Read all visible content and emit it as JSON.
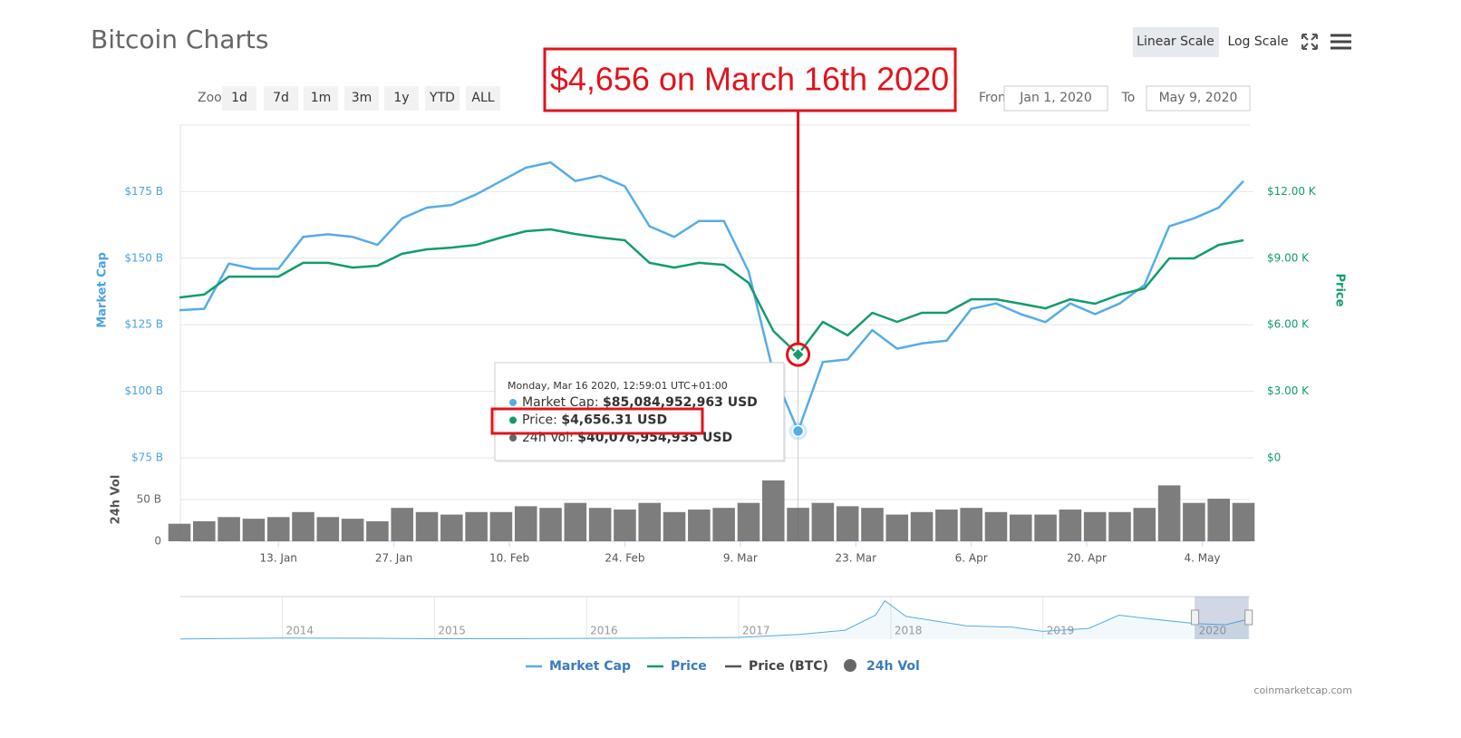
{
  "header": {
    "title": "Bitcoin Charts",
    "scale_buttons": [
      "Linear Scale",
      "Log Scale"
    ],
    "active_scale": 0
  },
  "zoom": {
    "label": "Zoom",
    "buttons": [
      "1d",
      "7d",
      "1m",
      "3m",
      "1y",
      "YTD",
      "ALL"
    ]
  },
  "range": {
    "from_label": "From",
    "from": "Jan 1, 2020",
    "to_label": "To",
    "to": "May 9, 2020"
  },
  "chart_data": {
    "type": "line",
    "x": [
      "2020-01-01",
      "2020-01-04",
      "2020-01-07",
      "2020-01-10",
      "2020-01-13",
      "2020-01-16",
      "2020-01-19",
      "2020-01-22",
      "2020-01-25",
      "2020-01-28",
      "2020-01-31",
      "2020-02-03",
      "2020-02-06",
      "2020-02-09",
      "2020-02-12",
      "2020-02-15",
      "2020-02-18",
      "2020-02-21",
      "2020-02-24",
      "2020-02-27",
      "2020-03-01",
      "2020-03-04",
      "2020-03-07",
      "2020-03-10",
      "2020-03-13",
      "2020-03-16",
      "2020-03-19",
      "2020-03-22",
      "2020-03-25",
      "2020-03-28",
      "2020-03-31",
      "2020-04-03",
      "2020-04-06",
      "2020-04-09",
      "2020-04-12",
      "2020-04-15",
      "2020-04-18",
      "2020-04-21",
      "2020-04-24",
      "2020-04-27",
      "2020-04-30",
      "2020-05-03",
      "2020-05-06",
      "2020-05-09"
    ],
    "xlim": [
      "2020-01-01",
      "2020-05-09"
    ],
    "xticks": [
      {
        "value": "2020-01-13",
        "label": "13. Jan"
      },
      {
        "value": "2020-01-27",
        "label": "27. Jan"
      },
      {
        "value": "2020-02-10",
        "label": "10. Feb"
      },
      {
        "value": "2020-02-24",
        "label": "24. Feb"
      },
      {
        "value": "2020-03-09",
        "label": "9. Mar"
      },
      {
        "value": "2020-03-23",
        "label": "23. Mar"
      },
      {
        "value": "2020-04-06",
        "label": "6. Apr"
      },
      {
        "value": "2020-04-20",
        "label": "20. Apr"
      },
      {
        "value": "2020-05-04",
        "label": "4. May"
      }
    ],
    "ylabel": "Market Cap",
    "ylim": [
      75,
      200
    ],
    "yticks": [
      {
        "value": 75,
        "label": "$75 B"
      },
      {
        "value": 100,
        "label": "$100 B"
      },
      {
        "value": 125,
        "label": "$125 B"
      },
      {
        "value": 150,
        "label": "$150 B"
      },
      {
        "value": 175,
        "label": "$175 B"
      }
    ],
    "y2label": "Price",
    "y2lim": [
      0,
      15000
    ],
    "y2ticks": [
      {
        "value": 0,
        "label": "$0"
      },
      {
        "value": 3000,
        "label": "$3.00 K"
      },
      {
        "value": 6000,
        "label": "$6.00 K"
      },
      {
        "value": 9000,
        "label": "$9.00 K"
      },
      {
        "value": 12000,
        "label": "$12.00 K"
      }
    ],
    "vollabel": "24h Vol",
    "vollim": [
      0,
      100
    ],
    "volticks": [
      0,
      {
        "value": 50,
        "label": "50 B"
      }
    ],
    "grid": true,
    "series": [
      {
        "name": "Market Cap",
        "type": "line",
        "axis": "y",
        "color": "#55ade6",
        "values": [
          130.5,
          131,
          148,
          146,
          146,
          158,
          159,
          158,
          155,
          165,
          169,
          170,
          174,
          179,
          184,
          186,
          179,
          181,
          177,
          162,
          158,
          164,
          164,
          145,
          107,
          85.08,
          111,
          112,
          123,
          116,
          118,
          119,
          131,
          133,
          129,
          126,
          133,
          129,
          133,
          140,
          162,
          165,
          169,
          179
        ]
      },
      {
        "name": "Price",
        "type": "line",
        "axis": "y2",
        "color": "#129c6c",
        "values": [
          7230,
          7360,
          8170,
          8170,
          8170,
          8790,
          8790,
          8580,
          8660,
          9200,
          9400,
          9480,
          9600,
          9930,
          10220,
          10300,
          10090,
          9930,
          9810,
          8790,
          8580,
          8790,
          8700,
          7890,
          5720,
          4656.31,
          6130,
          5520,
          6540,
          6130,
          6540,
          6540,
          7150,
          7150,
          6950,
          6740,
          7150,
          6950,
          7360,
          7640,
          8990,
          8990,
          9600,
          9810
        ]
      },
      {
        "name": "Price (BTC)",
        "type": "hidden",
        "color": "#555555"
      },
      {
        "name": "24h Vol",
        "type": "column",
        "axis": "vol",
        "color": "#666666",
        "values": [
          21,
          24,
          29,
          27,
          29,
          35,
          29,
          27,
          24,
          40,
          35,
          32,
          35,
          35,
          42,
          40,
          46,
          40,
          38,
          46,
          35,
          38,
          40,
          46,
          73,
          40.08,
          46,
          42,
          40,
          32,
          35,
          38,
          40,
          35,
          32,
          32,
          38,
          35,
          35,
          40,
          67,
          46,
          51,
          46
        ]
      }
    ],
    "annotation": {
      "text": "$4,656 on March 16th 2020",
      "x": "2020-03-16"
    },
    "tooltip": {
      "heading": "Monday, Mar 16 2020, 12:59:01 UTC+01:00",
      "rows": [
        {
          "label": "Market Cap:",
          "value": "$85,084,952,963 USD"
        },
        {
          "label": "Price:",
          "value": "$4,656.31 USD"
        },
        {
          "label": "24h Vol:",
          "value": "$40,076,954,935 USD"
        }
      ]
    },
    "navigator": {
      "x": [
        2013.33,
        2014,
        2014.5,
        2015,
        2015.5,
        2016,
        2016.5,
        2017,
        2017.4,
        2017.7,
        2017.9,
        2017.96,
        2018.1,
        2018.3,
        2018.5,
        2018.8,
        2019,
        2019.3,
        2019.5,
        2019.7,
        2020,
        2020.2,
        2020.36
      ],
      "values": [
        2,
        10,
        8,
        4,
        4,
        7,
        10,
        15,
        40,
        75,
        200,
        320,
        190,
        150,
        110,
        100,
        65,
        90,
        200,
        170,
        130,
        120,
        170
      ],
      "xlim": [
        2013.33,
        2020.36
      ],
      "ylim": [
        0,
        340
      ],
      "xticks": [
        2014,
        2015,
        2016,
        2017,
        2018,
        2019,
        2020
      ],
      "color": "#55ade6"
    },
    "credits": "coinmarketcap.com"
  }
}
